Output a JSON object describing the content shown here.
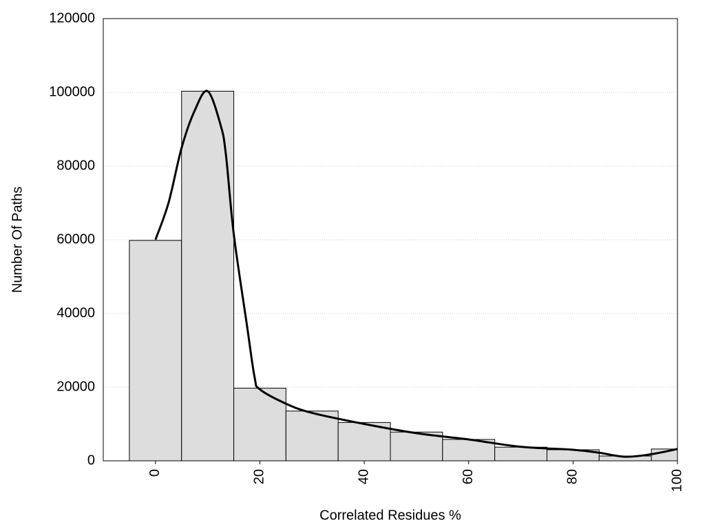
{
  "chart_data": {
    "type": "histogram",
    "xlabel": "Correlated Residues %",
    "ylabel": "Number Of Paths",
    "bins": [
      -5,
      5,
      15,
      25,
      35,
      45,
      55,
      65,
      75,
      85,
      95,
      105
    ],
    "values": [
      59800,
      100300,
      19700,
      13500,
      10400,
      7800,
      5800,
      3700,
      3000,
      1300,
      3200
    ],
    "color": "#dddddd",
    "curve": {
      "color": "#000000",
      "x": [
        0,
        2.5,
        5,
        7.5,
        10,
        12.5,
        13.5,
        15,
        17.5,
        19,
        20,
        25,
        30,
        40,
        50,
        60,
        70,
        80,
        85,
        90,
        95,
        100
      ],
      "values": [
        60000,
        70000,
        84900,
        95000,
        100300,
        91000,
        83000,
        61500,
        37000,
        22600,
        19400,
        15500,
        13000,
        10000,
        7500,
        5800,
        3800,
        3000,
        2200,
        1100,
        1800,
        3200
      ]
    },
    "xlim": [
      -10,
      100
    ],
    "xticks": [
      0,
      20,
      40,
      60,
      80,
      100
    ],
    "ylim": [
      0,
      120000
    ],
    "yticks": [
      0,
      20000,
      40000,
      60000,
      80000,
      100000,
      120000
    ],
    "grid": true
  }
}
